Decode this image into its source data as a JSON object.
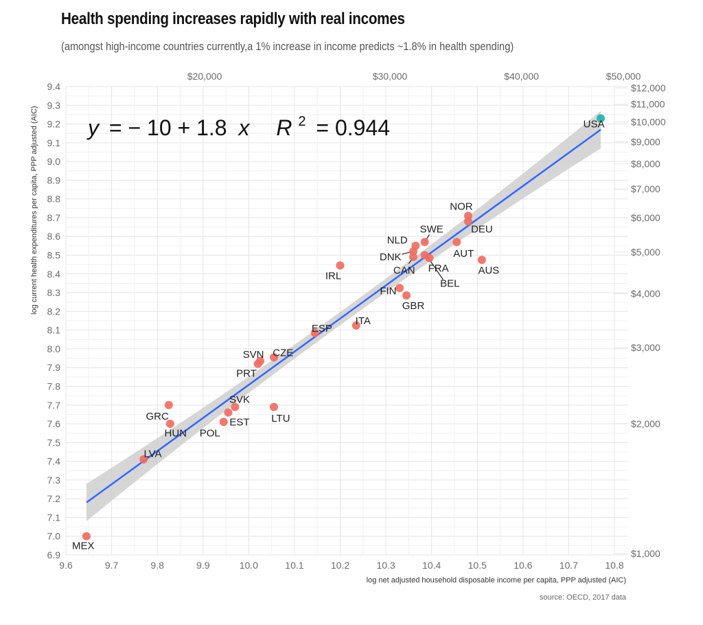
{
  "chart_data": {
    "type": "scatter",
    "title": "Health spending increases rapidly with real incomes",
    "subtitle": "(amongst high-income countries currently,a 1% increase in income predicts ~1.8% in health spending)",
    "xlabel": "log net adjusted household disposable income per capita, PPP adjusted (AIC)",
    "ylabel": "log current health expenditures per capita, PPP adjusted (AIC)",
    "source": "source: OECD, 2017 data",
    "xlim": [
      9.6,
      10.8
    ],
    "ylim": [
      6.9,
      9.4
    ],
    "grid": true,
    "x_ticks": [
      "9.6",
      "9.7",
      "9.8",
      "9.9",
      "10.0",
      "10.1",
      "10.2",
      "10.3",
      "10.4",
      "10.5",
      "10.6",
      "10.7",
      "10.8"
    ],
    "y_ticks": [
      "6.9",
      "7.0",
      "7.1",
      "7.2",
      "7.3",
      "7.4",
      "7.5",
      "7.6",
      "7.7",
      "7.8",
      "7.9",
      "8.0",
      "8.1",
      "8.2",
      "8.3",
      "8.4",
      "8.5",
      "8.6",
      "8.7",
      "8.8",
      "8.9",
      "9.0",
      "9.1",
      "9.2",
      "9.3",
      "9.4"
    ],
    "secondary_x_ticks": [
      {
        "label": "$20,000",
        "value": 20000
      },
      {
        "label": "$30,000",
        "value": 30000
      },
      {
        "label": "$40,000",
        "value": 40000
      },
      {
        "label": "$50,000",
        "value": 50000
      }
    ],
    "secondary_y_ticks": [
      {
        "label": "$1,000",
        "value": 1000
      },
      {
        "label": "$2,000",
        "value": 2000
      },
      {
        "label": "$3,000",
        "value": 3000
      },
      {
        "label": "$4,000",
        "value": 4000
      },
      {
        "label": "$5,000",
        "value": 5000
      },
      {
        "label": "$6,000",
        "value": 6000
      },
      {
        "label": "$7,000",
        "value": 7000
      },
      {
        "label": "$8,000",
        "value": 8000
      },
      {
        "label": "$9,000",
        "value": 9000
      },
      {
        "label": "$10,000",
        "value": 10000
      },
      {
        "label": "$11,000",
        "value": 11000
      },
      {
        "label": "$12,000",
        "value": 12000
      }
    ],
    "regression": {
      "equation_lhs": "y",
      "equation_rhs": "= − 10 + 1.8",
      "equation_var": "x",
      "r2_label": "R",
      "r2_sup": "2",
      "r2_value": "= 0.944",
      "intercept": -10.0,
      "slope": 1.8,
      "line_x": [
        9.645,
        10.77
      ],
      "line_y": [
        7.18,
        9.17
      ],
      "ci_halfwidth_ends": 0.1,
      "ci_halfwidth_mid": 0.035,
      "line_color": "#3366ff",
      "ci_color": "#cccccc"
    },
    "points": [
      {
        "label": "USA",
        "x": 10.77,
        "y": 9.23,
        "color": "#20b2aa",
        "lx": 10.755,
        "ly": 9.2
      },
      {
        "label": "NOR",
        "x": 10.48,
        "y": 8.71,
        "color": "#f06c62",
        "lx": 10.465,
        "ly": 8.76
      },
      {
        "label": "DEU",
        "x": 10.48,
        "y": 8.68,
        "color": "#f06c62",
        "lx": 10.51,
        "ly": 8.64
      },
      {
        "label": "AUT",
        "x": 10.455,
        "y": 8.57,
        "color": "#f06c62",
        "lx": 10.47,
        "ly": 8.51
      },
      {
        "label": "AUS",
        "x": 10.51,
        "y": 8.475,
        "color": "#f06c62",
        "lx": 10.525,
        "ly": 8.42
      },
      {
        "label": "SWE",
        "x": 10.385,
        "y": 8.57,
        "color": "#f06c62",
        "lx": 10.4,
        "ly": 8.64
      },
      {
        "label": "NLD",
        "x": 10.365,
        "y": 8.55,
        "color": "#f06c62",
        "lx": 10.325,
        "ly": 8.58
      },
      {
        "label": "DNK",
        "x": 10.36,
        "y": 8.52,
        "color": "#f06c62",
        "lx": 10.31,
        "ly": 8.49
      },
      {
        "label": "CAN",
        "x": 10.36,
        "y": 8.49,
        "color": "#f06c62",
        "lx": 10.34,
        "ly": 8.42
      },
      {
        "label": "BEL",
        "x": 10.385,
        "y": 8.5,
        "color": "#f06c62",
        "lx": 10.44,
        "ly": 8.35
      },
      {
        "label": "FRA",
        "x": 10.395,
        "y": 8.485,
        "color": "#f06c62",
        "lx": 10.415,
        "ly": 8.43
      },
      {
        "label": "IRL",
        "x": 10.2,
        "y": 8.445,
        "color": "#f06c62",
        "lx": 10.185,
        "ly": 8.39
      },
      {
        "label": "FIN",
        "x": 10.33,
        "y": 8.325,
        "color": "#f06c62",
        "lx": 10.305,
        "ly": 8.31
      },
      {
        "label": "GBR",
        "x": 10.345,
        "y": 8.285,
        "color": "#f06c62",
        "lx": 10.36,
        "ly": 8.23
      },
      {
        "label": "ITA",
        "x": 10.235,
        "y": 8.125,
        "color": "#f06c62",
        "lx": 10.25,
        "ly": 8.15
      },
      {
        "label": "ESP",
        "x": 10.145,
        "y": 8.085,
        "color": "#f06c62",
        "lx": 10.16,
        "ly": 8.11
      },
      {
        "label": "CZE",
        "x": 10.055,
        "y": 7.955,
        "color": "#f06c62",
        "lx": 10.075,
        "ly": 7.98
      },
      {
        "label": "SVN",
        "x": 10.025,
        "y": 7.935,
        "color": "#f06c62",
        "lx": 10.01,
        "ly": 7.97
      },
      {
        "label": "PRT",
        "x": 10.02,
        "y": 7.92,
        "color": "#f06c62",
        "lx": 9.995,
        "ly": 7.87
      },
      {
        "label": "SVK",
        "x": 9.97,
        "y": 7.69,
        "color": "#f06c62",
        "lx": 9.98,
        "ly": 7.73
      },
      {
        "label": "EST",
        "x": 9.955,
        "y": 7.66,
        "color": "#f06c62",
        "lx": 9.98,
        "ly": 7.61
      },
      {
        "label": "POL",
        "x": 9.945,
        "y": 7.61,
        "color": "#f06c62",
        "lx": 9.915,
        "ly": 7.55
      },
      {
        "label": "LTU",
        "x": 10.055,
        "y": 7.69,
        "color": "#f06c62",
        "lx": 10.07,
        "ly": 7.63
      },
      {
        "label": "GRC",
        "x": 9.825,
        "y": 7.7,
        "color": "#f06c62",
        "lx": 9.8,
        "ly": 7.64
      },
      {
        "label": "HUN",
        "x": 9.828,
        "y": 7.6,
        "color": "#f06c62",
        "lx": 9.84,
        "ly": 7.55
      },
      {
        "label": "LVA",
        "x": 9.77,
        "y": 7.41,
        "color": "#f06c62",
        "lx": 9.79,
        "ly": 7.44
      },
      {
        "label": "MEX",
        "x": 9.645,
        "y": 7.0,
        "color": "#f06c62",
        "lx": 9.638,
        "ly": 6.95
      }
    ],
    "leader_lines": [
      {
        "label": "SWE",
        "from": [
          10.385,
          8.57
        ],
        "to": [
          10.395,
          8.61
        ]
      },
      {
        "label": "DNK",
        "from": [
          10.36,
          8.52
        ],
        "to": [
          10.335,
          8.505
        ]
      },
      {
        "label": "CAN",
        "from": [
          10.36,
          8.49
        ],
        "to": [
          10.35,
          8.455
        ]
      },
      {
        "label": "BEL",
        "from": [
          10.39,
          8.495
        ],
        "to": [
          10.425,
          8.37
        ]
      }
    ]
  }
}
